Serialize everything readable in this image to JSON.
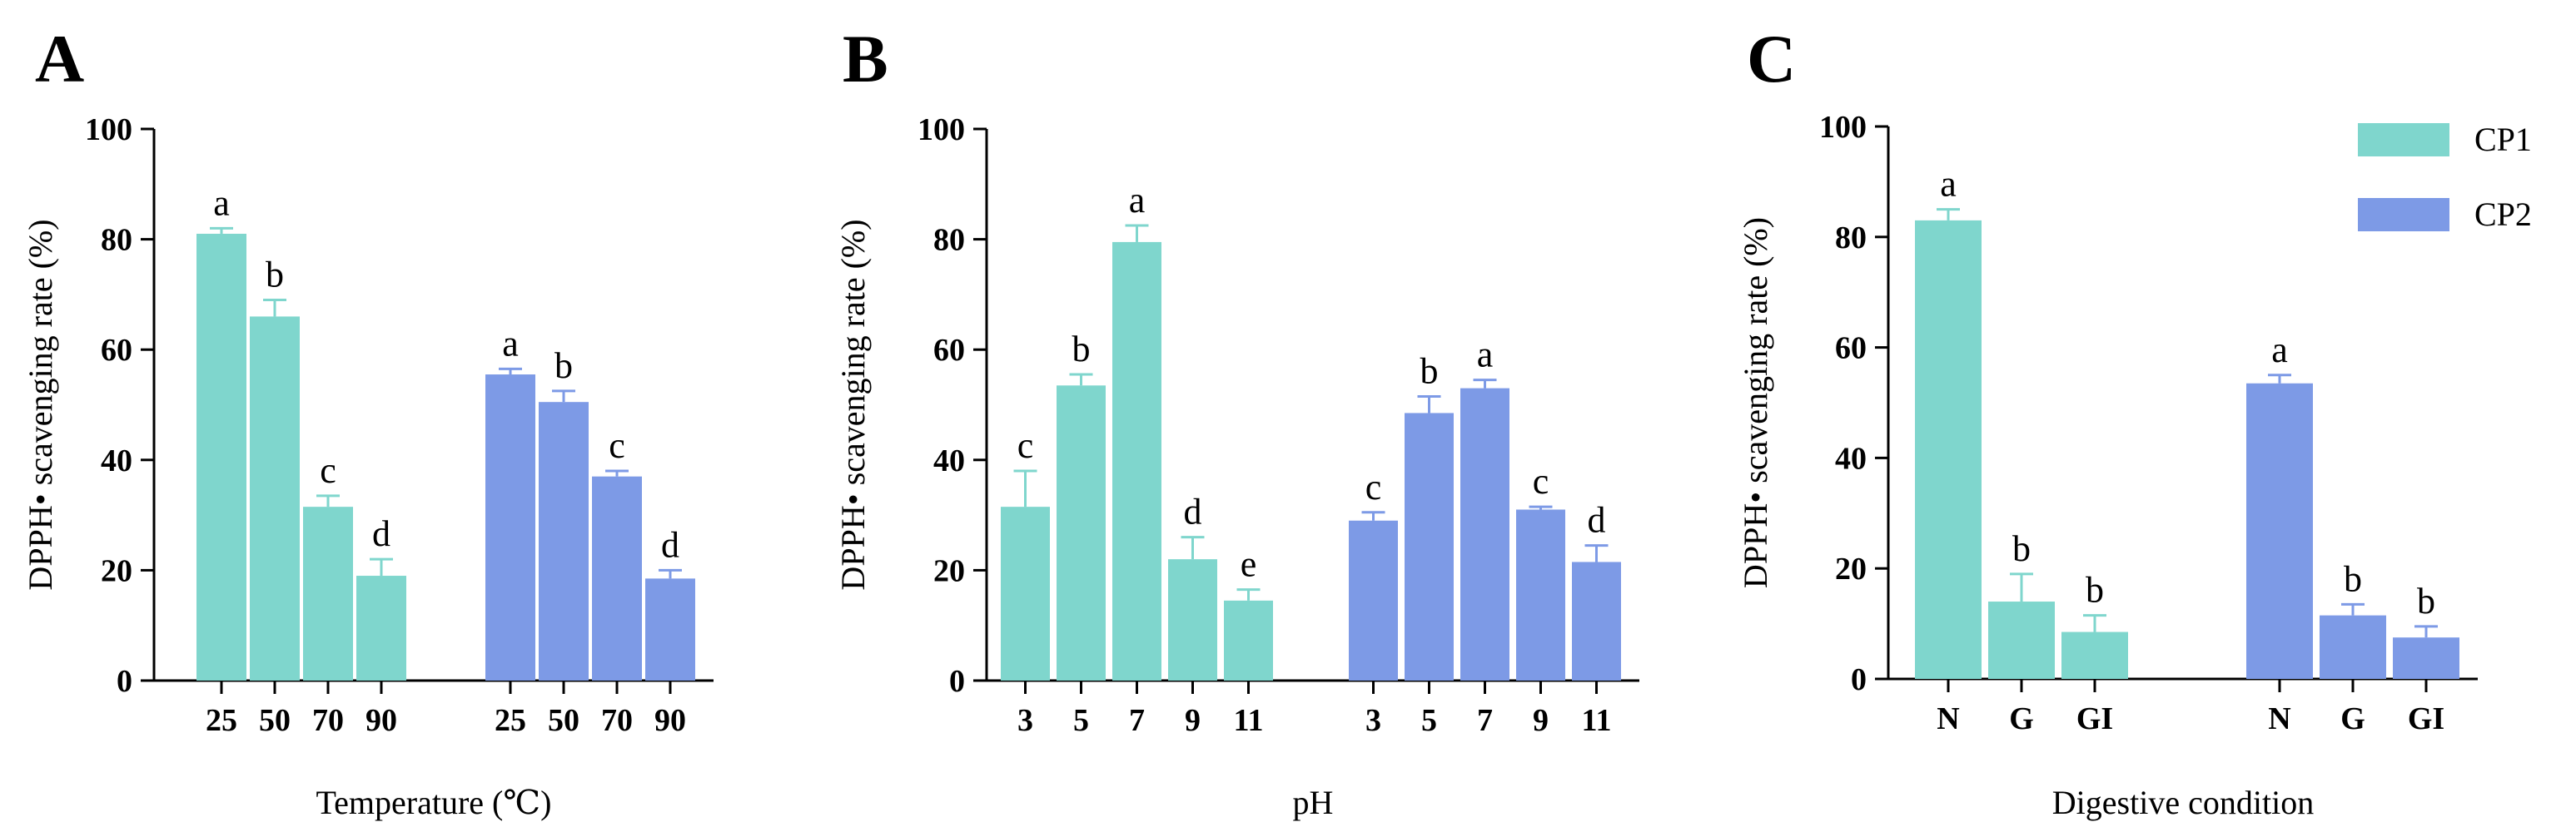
{
  "colors": {
    "CP1": "#7fd6cd",
    "CP2": "#7d9ae6",
    "axis": "#000000"
  },
  "legend": {
    "placement": "top-right",
    "entries": [
      {
        "name": "CP1",
        "color": "#7fd6cd"
      },
      {
        "name": "CP2",
        "color": "#7d9ae6"
      }
    ]
  },
  "chart_data": [
    {
      "type": "bar",
      "panel": "A",
      "xlabel": "Temperature (℃)",
      "ylabel": "DPPH• scavenging rate (%)",
      "ylim": [
        0,
        100
      ],
      "yticks": [
        "0",
        "20",
        "40",
        "60",
        "80",
        "100"
      ],
      "categories": [
        "25",
        "50",
        "70",
        "90"
      ],
      "series": [
        {
          "name": "CP1",
          "values": [
            81,
            66,
            31.5,
            19
          ],
          "errors": [
            1,
            3,
            2,
            3
          ],
          "letters": [
            "a",
            "b",
            "c",
            "d"
          ]
        },
        {
          "name": "CP2",
          "values": [
            55.5,
            50.5,
            37,
            18.5
          ],
          "errors": [
            1,
            2,
            1,
            1.5
          ],
          "letters": [
            "a",
            "b",
            "c",
            "d"
          ]
        }
      ]
    },
    {
      "type": "bar",
      "panel": "B",
      "xlabel": "pH",
      "ylabel": "DPPH• scavenging rate (%)",
      "ylim": [
        0,
        100
      ],
      "yticks": [
        "0",
        "20",
        "40",
        "60",
        "80",
        "100"
      ],
      "categories": [
        "3",
        "5",
        "7",
        "9",
        "11"
      ],
      "series": [
        {
          "name": "CP1",
          "values": [
            31.5,
            53.5,
            79.5,
            22,
            14.5
          ],
          "errors": [
            6.5,
            2,
            3,
            4,
            2
          ],
          "letters": [
            "c",
            "b",
            "a",
            "d",
            "e"
          ]
        },
        {
          "name": "CP2",
          "values": [
            29,
            48.5,
            53,
            31,
            21.5
          ],
          "errors": [
            1.5,
            3,
            1.5,
            0.5,
            3
          ],
          "letters": [
            "c",
            "b",
            "a",
            "c",
            "d"
          ]
        }
      ]
    },
    {
      "type": "bar",
      "panel": "C",
      "xlabel": "Digestive condition",
      "ylabel": "DPPH• scavenging rate (%)",
      "ylim": [
        0,
        100
      ],
      "yticks": [
        "0",
        "20",
        "40",
        "60",
        "80",
        "100"
      ],
      "categories": [
        "N",
        "G",
        "GI"
      ],
      "series": [
        {
          "name": "CP1",
          "values": [
            83,
            14,
            8.5
          ],
          "errors": [
            2,
            5,
            3
          ],
          "letters": [
            "a",
            "b",
            "b"
          ]
        },
        {
          "name": "CP2",
          "values": [
            53.5,
            11.5,
            7.5
          ],
          "errors": [
            1.5,
            2,
            2
          ],
          "letters": [
            "a",
            "b",
            "b"
          ]
        }
      ]
    }
  ]
}
